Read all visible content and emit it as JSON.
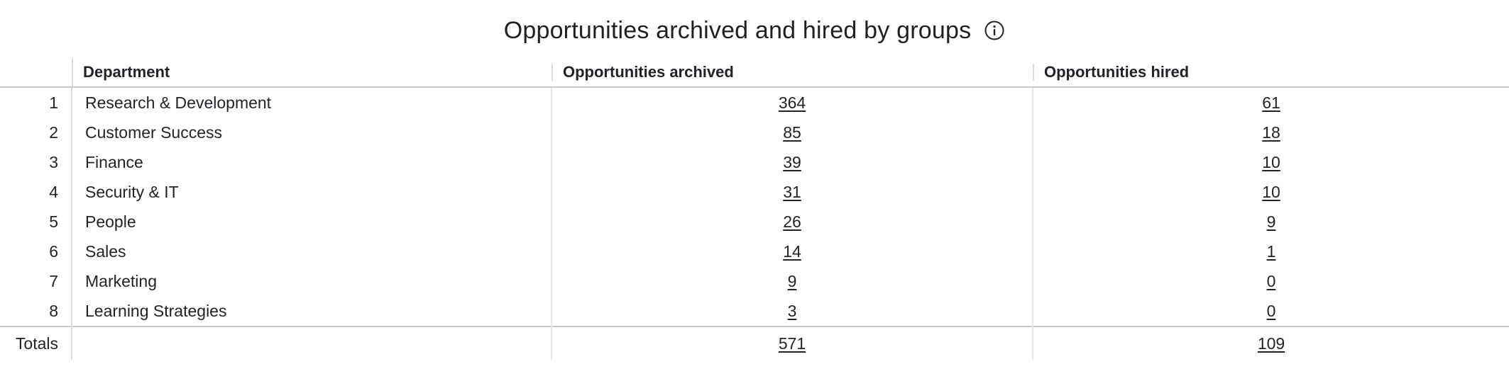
{
  "title": "Opportunities archived and hired by groups",
  "icons": {
    "info": "info-icon"
  },
  "columns": {
    "department": "Department",
    "archived": "Opportunities archived",
    "hired": "Opportunities hired"
  },
  "rows": [
    {
      "index": "1",
      "department": "Research & Development",
      "archived": "364",
      "hired": "61"
    },
    {
      "index": "2",
      "department": "Customer Success",
      "archived": "85",
      "hired": "18"
    },
    {
      "index": "3",
      "department": "Finance",
      "archived": "39",
      "hired": "10"
    },
    {
      "index": "4",
      "department": "Security & IT",
      "archived": "31",
      "hired": "10"
    },
    {
      "index": "5",
      "department": "People",
      "archived": "26",
      "hired": "9"
    },
    {
      "index": "6",
      "department": "Sales",
      "archived": "14",
      "hired": "1"
    },
    {
      "index": "7",
      "department": "Marketing",
      "archived": "9",
      "hired": "0"
    },
    {
      "index": "8",
      "department": "Learning Strategies",
      "archived": "3",
      "hired": "0"
    }
  ],
  "totals": {
    "label": "Totals",
    "archived": "571",
    "hired": "109"
  }
}
